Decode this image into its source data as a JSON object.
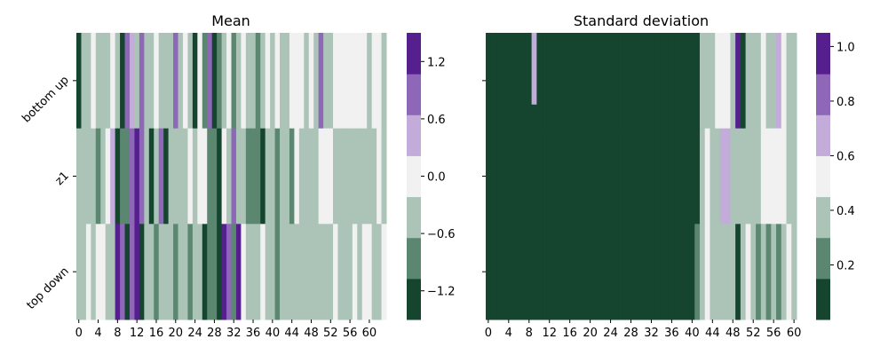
{
  "palette": [
    "#15452f",
    "#5b8770",
    "#abc4b7",
    "#f1f1f1",
    "#c3acda",
    "#8e67b8",
    "#561f8e"
  ],
  "chart_data": [
    {
      "type": "heatmap",
      "title": "Mean",
      "rows": [
        "bottom up",
        "z1",
        "top down"
      ],
      "x_tick_labels": [
        "0",
        "4",
        "8",
        "12",
        "16",
        "20",
        "24",
        "28",
        "32",
        "36",
        "40",
        "44",
        "48",
        "52",
        "56",
        "60"
      ],
      "colorbar": {
        "ticks": [
          "1.2",
          "0.6",
          "0.0",
          "−0.6",
          "−1.2"
        ],
        "vmin": -1.5,
        "vmax": 1.5,
        "levels": 7
      },
      "cell_levels": [
        "0223222320542522322252320315012312322123232233323252233333332332",
        "2222123401156520250222232331103252211102212213222233322222222232",
        "2232332265056022122212212201106516322232212222222222232223233223"
      ]
    },
    {
      "type": "heatmap",
      "title": "Standard deviation",
      "rows": [
        "bottom up",
        "z1",
        "top down"
      ],
      "x_tick_labels": [
        "0",
        "4",
        "8",
        "12",
        "16",
        "20",
        "24",
        "28",
        "32",
        "36",
        "40",
        "44",
        "48",
        "52",
        "56",
        "60"
      ],
      "colorbar": {
        "ticks": [
          "1.0",
          "0.8",
          "0.6",
          "0.4",
          "0.2"
        ],
        "vmin": 0.0,
        "vmax": 1.05,
        "levels": 7
      },
      "cell_levels": [
        "0000000000000000000000000000000000000000002223332602223224322",
        "0000000000000000000000000000000000000000002322442222223333322",
        "0000000000000000000000000000000000000000012322222023212121232"
      ],
      "cell_levels_upper_row0_col9": 4
    }
  ]
}
